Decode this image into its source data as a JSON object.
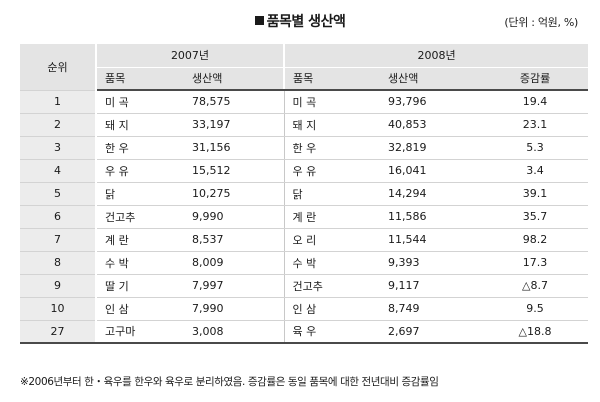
{
  "title": "품목별 생산액",
  "unit": "(단위 : 억원, %)",
  "headers": {
    "rank": "순위",
    "year_2007": "2007년",
    "year_2008": "2008년",
    "item": "품목",
    "value": "생산액",
    "change": "증감률"
  },
  "rows": [
    {
      "rank": "1",
      "item07": "미 곡",
      "val07": "78,575",
      "item08": "미 곡",
      "val08": "93,796",
      "chg": "19.4"
    },
    {
      "rank": "2",
      "item07": "돼 지",
      "val07": "33,197",
      "item08": "돼 지",
      "val08": "40,853",
      "chg": "23.1"
    },
    {
      "rank": "3",
      "item07": "한 우",
      "val07": "31,156",
      "item08": "한 우",
      "val08": "32,819",
      "chg": "5.3"
    },
    {
      "rank": "4",
      "item07": "우 유",
      "val07": "15,512",
      "item08": "우 유",
      "val08": "16,041",
      "chg": "3.4"
    },
    {
      "rank": "5",
      "item07": "닭",
      "val07": "10,275",
      "item08": "닭",
      "val08": "14,294",
      "chg": "39.1"
    },
    {
      "rank": "6",
      "item07": "건고추",
      "val07": "9,990",
      "item08": "계 란",
      "val08": "11,586",
      "chg": "35.7"
    },
    {
      "rank": "7",
      "item07": "계 란",
      "val07": "8,537",
      "item08": "오 리",
      "val08": "11,544",
      "chg": "98.2"
    },
    {
      "rank": "8",
      "item07": "수 박",
      "val07": "8,009",
      "item08": "수 박",
      "val08": "9,393",
      "chg": "17.3"
    },
    {
      "rank": "9",
      "item07": "딸 기",
      "val07": "7,997",
      "item08": "건고추",
      "val08": "9,117",
      "chg": "△8.7"
    },
    {
      "rank": "10",
      "item07": "인 삼",
      "val07": "7,990",
      "item08": "인 삼",
      "val08": "8,749",
      "chg": "9.5"
    },
    {
      "rank": "27",
      "item07": "고구마",
      "val07": "3,008",
      "item08": "육 우",
      "val08": "2,697",
      "chg": "△18.8"
    }
  ],
  "note": "※2006년부터 한・육우를 한우와 육우로 분리하였음. 증감률은 동일 품목에 대한 전년대비 증감률임"
}
